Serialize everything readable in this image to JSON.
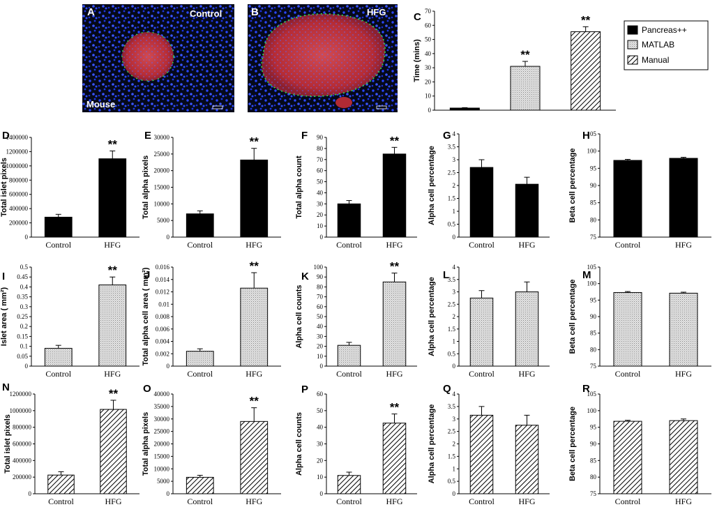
{
  "micrographs": [
    {
      "letter": "A",
      "label": "Control",
      "corner_label": "Mouse"
    },
    {
      "letter": "B",
      "label": "HFG",
      "corner_label": ""
    }
  ],
  "legend": [
    "Pancreas++",
    "MATLAB",
    "Manual"
  ],
  "colors": {
    "pancreas": "#000000",
    "matlab": "#d9d9d9",
    "manual": "hatched",
    "stain_nuclei": "#1e3cff",
    "stain_islet": "#c8323c",
    "stain_alpha": "#30d050"
  },
  "chart_data": [
    {
      "id": "C",
      "type": "bar",
      "title": "",
      "ylabel": "Time (mins)",
      "xlabel": "",
      "categories": [
        "Pancreas++",
        "MATLAB",
        "Manual"
      ],
      "values": [
        1.5,
        31,
        55.5
      ],
      "errors": [
        0.3,
        3.5,
        3.5
      ],
      "ylim": [
        0,
        70
      ],
      "ytick_step": 10,
      "significance": [
        "",
        "**",
        "**"
      ],
      "fills": [
        "solid",
        "dots",
        "hatch"
      ]
    },
    {
      "id": "D",
      "type": "bar",
      "title": "",
      "ylabel": "Total islet pixels",
      "xlabel": "",
      "categories": [
        "Control",
        "HFG"
      ],
      "values": [
        280000,
        1100000
      ],
      "errors": [
        40000,
        110000
      ],
      "ylim": [
        0,
        1400000
      ],
      "ytick_step": 200000,
      "significance": [
        "",
        "**"
      ],
      "fills": [
        "solid",
        "solid"
      ]
    },
    {
      "id": "E",
      "type": "bar",
      "title": "",
      "ylabel": "Total alpha pixels",
      "xlabel": "",
      "categories": [
        "Control",
        "HFG"
      ],
      "values": [
        7000,
        23200
      ],
      "errors": [
        900,
        3500
      ],
      "ylim": [
        0,
        30000
      ],
      "ytick_step": 5000,
      "significance": [
        "",
        "**"
      ],
      "fills": [
        "solid",
        "solid"
      ]
    },
    {
      "id": "F",
      "type": "bar",
      "title": "",
      "ylabel": "Total alpha count",
      "xlabel": "",
      "categories": [
        "Control",
        "HFG"
      ],
      "values": [
        30,
        75
      ],
      "errors": [
        3,
        6
      ],
      "ylim": [
        0,
        90
      ],
      "ytick_step": 10,
      "significance": [
        "",
        "**"
      ],
      "fills": [
        "solid",
        "solid"
      ]
    },
    {
      "id": "G",
      "type": "bar",
      "title": "",
      "ylabel": "Alpha cell percentage",
      "xlabel": "",
      "categories": [
        "Control",
        "HFG"
      ],
      "values": [
        2.7,
        2.05
      ],
      "errors": [
        0.3,
        0.27
      ],
      "ylim": [
        0,
        4
      ],
      "ytick_step": 0.5,
      "significance": [
        "",
        ""
      ],
      "fills": [
        "solid",
        "solid"
      ]
    },
    {
      "id": "H",
      "type": "bar",
      "title": "",
      "ylabel": "Beta cell percentage",
      "xlabel": "",
      "categories": [
        "Control",
        "HFG"
      ],
      "values": [
        97.3,
        97.9
      ],
      "errors": [
        0.3,
        0.3
      ],
      "ylim": [
        75,
        105
      ],
      "ytick_step": 5,
      "significance": [
        "",
        ""
      ],
      "fills": [
        "solid",
        "solid"
      ]
    },
    {
      "id": "I",
      "type": "bar",
      "title": "",
      "ylabel": "Islet area ( mm²)",
      "xlabel": "",
      "categories": [
        "Control",
        "HFG"
      ],
      "values": [
        0.09,
        0.41
      ],
      "errors": [
        0.015,
        0.04
      ],
      "ylim": [
        0,
        0.5
      ],
      "ytick_step": 0.05,
      "significance": [
        "",
        "**"
      ],
      "fills": [
        "dots",
        "dots"
      ]
    },
    {
      "id": "J",
      "type": "bar",
      "title": "",
      "ylabel": "Total alpha cell area ( mm²)",
      "xlabel": "",
      "categories": [
        "Control",
        "HFG"
      ],
      "values": [
        0.0024,
        0.0126
      ],
      "errors": [
        0.0004,
        0.0025
      ],
      "ylim": [
        0,
        0.016
      ],
      "ytick_step": 0.002,
      "significance": [
        "",
        "**"
      ],
      "fills": [
        "dots",
        "dots"
      ]
    },
    {
      "id": "K",
      "type": "bar",
      "title": "",
      "ylabel": "Alpha cell counts",
      "xlabel": "",
      "categories": [
        "Control",
        "HFG"
      ],
      "values": [
        21,
        85
      ],
      "errors": [
        3,
        9
      ],
      "ylim": [
        0,
        100
      ],
      "ytick_step": 10,
      "significance": [
        "",
        "**"
      ],
      "fills": [
        "dots",
        "dots"
      ]
    },
    {
      "id": "L",
      "type": "bar",
      "title": "",
      "ylabel": "Alpha cell percentage",
      "xlabel": "",
      "categories": [
        "Control",
        "HFG"
      ],
      "values": [
        2.75,
        3.0
      ],
      "errors": [
        0.3,
        0.4
      ],
      "ylim": [
        0,
        4
      ],
      "ytick_step": 0.5,
      "significance": [
        "",
        ""
      ],
      "fills": [
        "dots",
        "dots"
      ]
    },
    {
      "id": "M",
      "type": "bar",
      "title": "",
      "ylabel": "Beta cell percentage",
      "xlabel": "",
      "categories": [
        "Control",
        "HFG"
      ],
      "values": [
        97.3,
        97.1
      ],
      "errors": [
        0.3,
        0.3
      ],
      "ylim": [
        75,
        105
      ],
      "ytick_step": 5,
      "significance": [
        "",
        ""
      ],
      "fills": [
        "dots",
        "dots"
      ]
    },
    {
      "id": "N",
      "type": "bar",
      "title": "",
      "ylabel": "Total islet pixels",
      "xlabel": "",
      "categories": [
        "Control",
        "HFG"
      ],
      "values": [
        225000,
        1015000
      ],
      "errors": [
        40000,
        110000
      ],
      "ylim": [
        0,
        1200000
      ],
      "ytick_step": 200000,
      "significance": [
        "",
        "**"
      ],
      "fills": [
        "hatch",
        "hatch"
      ]
    },
    {
      "id": "O",
      "type": "bar",
      "title": "",
      "ylabel": "Total alpha pixels",
      "xlabel": "",
      "categories": [
        "Control",
        "HFG"
      ],
      "values": [
        6600,
        29000
      ],
      "errors": [
        800,
        5500
      ],
      "ylim": [
        0,
        40000
      ],
      "ytick_step": 5000,
      "significance": [
        "",
        "**"
      ],
      "fills": [
        "hatch",
        "hatch"
      ]
    },
    {
      "id": "P",
      "type": "bar",
      "title": "",
      "ylabel": "Alpha cell counts",
      "xlabel": "",
      "categories": [
        "Control",
        "HFG"
      ],
      "values": [
        11,
        42.5
      ],
      "errors": [
        2,
        5.5
      ],
      "ylim": [
        0,
        60
      ],
      "ytick_step": 10,
      "significance": [
        "",
        "**"
      ],
      "fills": [
        "hatch",
        "hatch"
      ]
    },
    {
      "id": "Q",
      "type": "bar",
      "title": "",
      "ylabel": "Alpha cell percentage",
      "xlabel": "",
      "categories": [
        "Control",
        "HFG"
      ],
      "values": [
        3.15,
        2.75
      ],
      "errors": [
        0.35,
        0.4
      ],
      "ylim": [
        0,
        4
      ],
      "ytick_step": 0.5,
      "significance": [
        "",
        ""
      ],
      "fills": [
        "hatch",
        "hatch"
      ]
    },
    {
      "id": "R",
      "type": "bar",
      "title": "",
      "ylabel": "Beta cell percentage",
      "xlabel": "",
      "categories": [
        "Control",
        "HFG"
      ],
      "values": [
        96.8,
        97.0
      ],
      "errors": [
        0.3,
        0.5
      ],
      "ylim": [
        75,
        105
      ],
      "ytick_step": 5,
      "significance": [
        "",
        ""
      ],
      "fills": [
        "hatch",
        "hatch"
      ]
    }
  ]
}
